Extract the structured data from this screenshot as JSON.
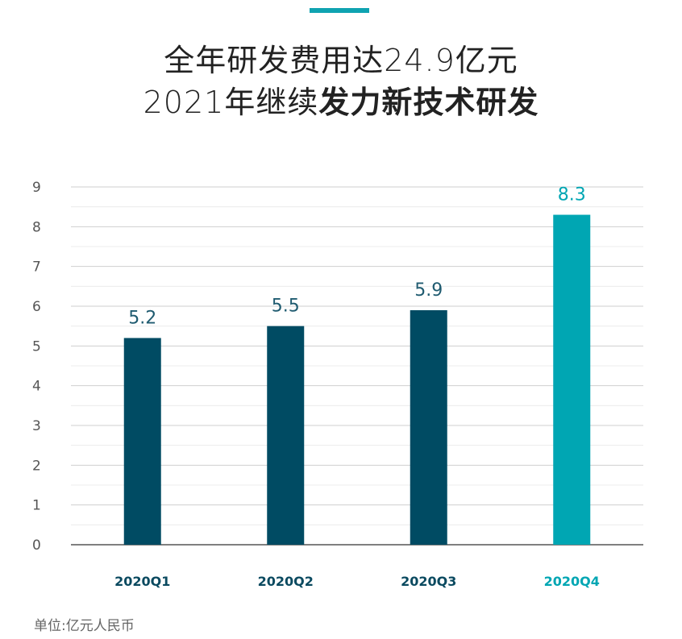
{
  "title": {
    "line1": "全年研发费用达24.9亿元",
    "line2_regular": "2021年继续",
    "line2_bold": "发力新技术研发"
  },
  "unit_note": "单位:亿元人民币",
  "colors": {
    "accent": "#0fa3b1",
    "dark_bar": "#004b63",
    "highlight_bar": "#00a6b3",
    "grid": "#cfcfcf"
  },
  "chart_data": {
    "type": "bar",
    "categories": [
      "2020Q1",
      "2020Q2",
      "2020Q3",
      "2020Q4"
    ],
    "values": [
      5.2,
      5.5,
      5.9,
      8.3
    ],
    "data_labels": [
      "5.2",
      "5.5",
      "5.9",
      "8.3"
    ],
    "highlight_index": 3,
    "ylim": [
      0,
      9
    ],
    "yticks": [
      0,
      1,
      2,
      3,
      4,
      5,
      6,
      7,
      8,
      9
    ],
    "grid": true,
    "xlabel": "",
    "ylabel": ""
  }
}
